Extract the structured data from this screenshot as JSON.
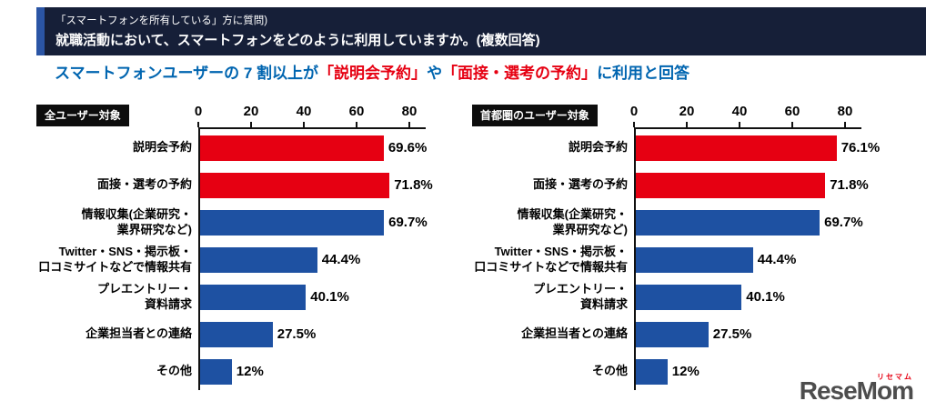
{
  "header": {
    "line1": "「スマートフォンを所有している」方に質問)",
    "line2": "就職活動において、スマートフォンをどのように利用していますか。(複数回答)"
  },
  "subtitle": {
    "segments": [
      {
        "text": "スマートフォンユーザーの 7 割以上が",
        "color": "#0065b0"
      },
      {
        "text": "「説明会予約」",
        "color": "#e60012"
      },
      {
        "text": "や",
        "color": "#0065b0"
      },
      {
        "text": "「面接・選考の予約」",
        "color": "#e60012"
      },
      {
        "text": "に利用と回答",
        "color": "#0065b0"
      }
    ]
  },
  "chart_data": [
    {
      "type": "bar",
      "orientation": "horizontal",
      "title": "全ユーザー対象",
      "categories": [
        [
          "説明会予約"
        ],
        [
          "面接・選考の予約"
        ],
        [
          "情報収集(企業研究・",
          "業界研究など)"
        ],
        [
          "Twitter・SNS・掲示板・",
          "口コミサイトなどで情報共有"
        ],
        [
          "プレエントリー・",
          "資料請求"
        ],
        [
          "企業担当者との連絡"
        ],
        [
          "その他"
        ]
      ],
      "values": [
        69.6,
        71.8,
        69.7,
        44.4,
        40.1,
        27.5,
        12
      ],
      "labels": [
        "69.6%",
        "71.8%",
        "69.7%",
        "44.4%",
        "40.1%",
        "27.5%",
        "12%"
      ],
      "bar_colors": [
        "#e60012",
        "#e60012",
        "#1e51a2",
        "#1e51a2",
        "#1e51a2",
        "#1e51a2",
        "#1e51a2"
      ],
      "ticks": [
        0,
        20,
        40,
        60,
        80
      ],
      "xlim": [
        0,
        86
      ],
      "grid": false,
      "legend": "none"
    },
    {
      "type": "bar",
      "orientation": "horizontal",
      "title": "首都圏のユーザー対象",
      "categories": [
        [
          "説明会予約"
        ],
        [
          "面接・選考の予約"
        ],
        [
          "情報収集(企業研究・",
          "業界研究など)"
        ],
        [
          "Twitter・SNS・掲示板・",
          "口コミサイトなどで情報共有"
        ],
        [
          "プレエントリー・",
          "資料請求"
        ],
        [
          "企業担当者との連絡"
        ],
        [
          "その他"
        ]
      ],
      "values": [
        76.1,
        71.8,
        69.7,
        44.4,
        40.1,
        27.5,
        12
      ],
      "labels": [
        "76.1%",
        "71.8%",
        "69.7%",
        "44.4%",
        "40.1%",
        "27.5%",
        "12%"
      ],
      "bar_colors": [
        "#e60012",
        "#e60012",
        "#1e51a2",
        "#1e51a2",
        "#1e51a2",
        "#1e51a2",
        "#1e51a2"
      ],
      "ticks": [
        0,
        20,
        40,
        60,
        80
      ],
      "xlim": [
        0,
        86
      ],
      "grid": false,
      "legend": "none"
    }
  ],
  "logo": {
    "text": "ReseMom",
    "ruby": "リセマム"
  }
}
